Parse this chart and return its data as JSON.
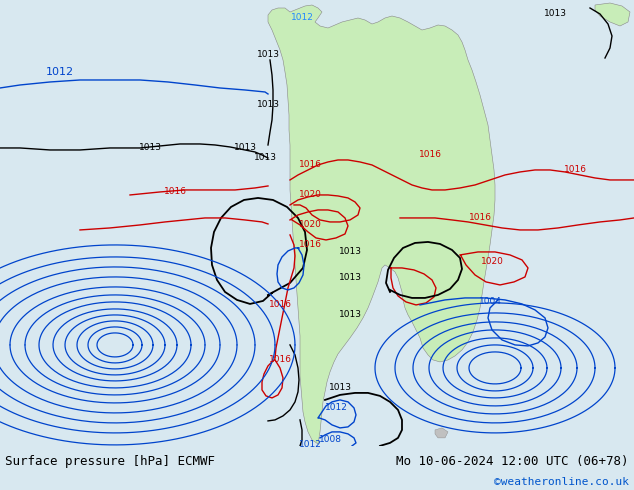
{
  "title_left": "Surface pressure [hPa] ECMWF",
  "title_right": "Mo 10-06-2024 12:00 UTC (06+78)",
  "credit": "©weatheronline.co.uk",
  "bg_color": "#d8e8f0",
  "land_color": "#c8edb8",
  "border_color": "#888888",
  "isobar_black": "#000000",
  "isobar_red": "#cc0000",
  "isobar_blue": "#0044cc",
  "bottom_bar_color": "#e0e0e0",
  "font_size_title": 9,
  "font_size_credit": 8,
  "fig_width": 6.34,
  "fig_height": 4.9
}
